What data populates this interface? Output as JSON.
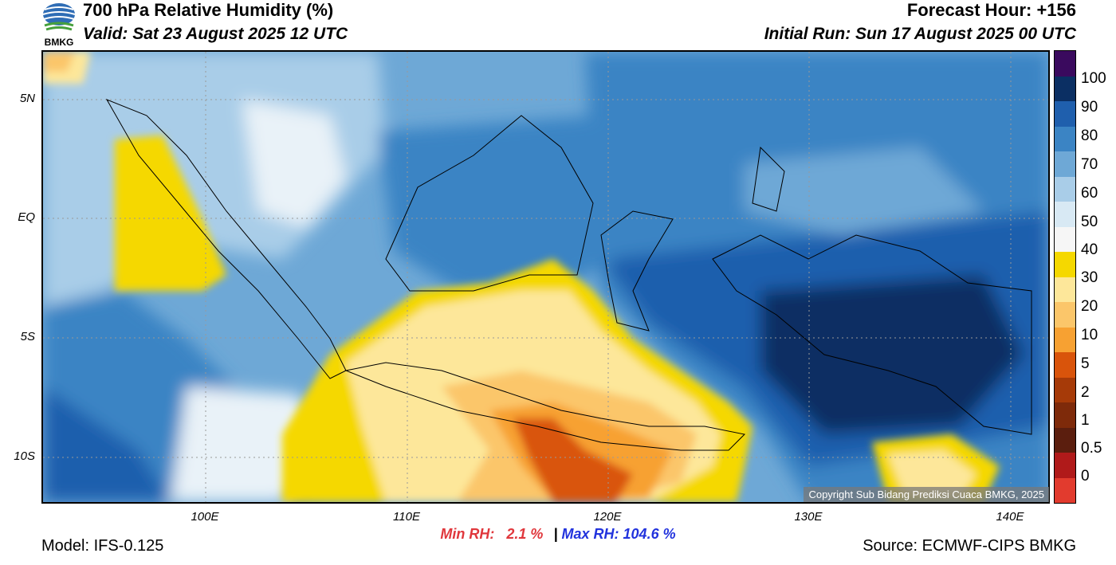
{
  "header": {
    "title": "700 hPa Relative Humidity (%)",
    "valid": "Valid: Sat 23 August 2025 12 UTC",
    "forecast_hour": "Forecast Hour: +156",
    "initial_run": "Initial Run: Sun 17 August 2025 00 UTC",
    "logo_text": "BMKG"
  },
  "axes": {
    "lat_labels": [
      "5N",
      "EQ",
      "5S",
      "10S"
    ],
    "lon_labels": [
      "100E",
      "110E",
      "120E",
      "130E",
      "140E"
    ]
  },
  "colorbar": {
    "labels": [
      "100",
      "90",
      "80",
      "70",
      "60",
      "50",
      "40",
      "30",
      "20",
      "10",
      "5",
      "2",
      "1",
      "0.5",
      "0"
    ],
    "colors": [
      "#3a0a5e",
      "#0b2f63",
      "#1f5fad",
      "#3b84c4",
      "#6ea8d6",
      "#a9cde8",
      "#d8e9f4",
      "#f6f6f6",
      "#f5d800",
      "#fde79a",
      "#fbc66a",
      "#f7a132",
      "#d9540b",
      "#a63a08",
      "#7e2a0a",
      "#5b1e0e",
      "#b01a1a",
      "#e23b2e"
    ]
  },
  "stats": {
    "min_label": "Min RH:",
    "min_value": "2.1 %",
    "separator": "|",
    "max_label": "Max RH:",
    "max_value": "104.6 %"
  },
  "footer": {
    "model": "Model: IFS-0.125",
    "source": "Source: ECMWF-CIPS BMKG",
    "copyright": "Copyright Sub Bidang Prediksi Cuaca BMKG, 2025"
  }
}
